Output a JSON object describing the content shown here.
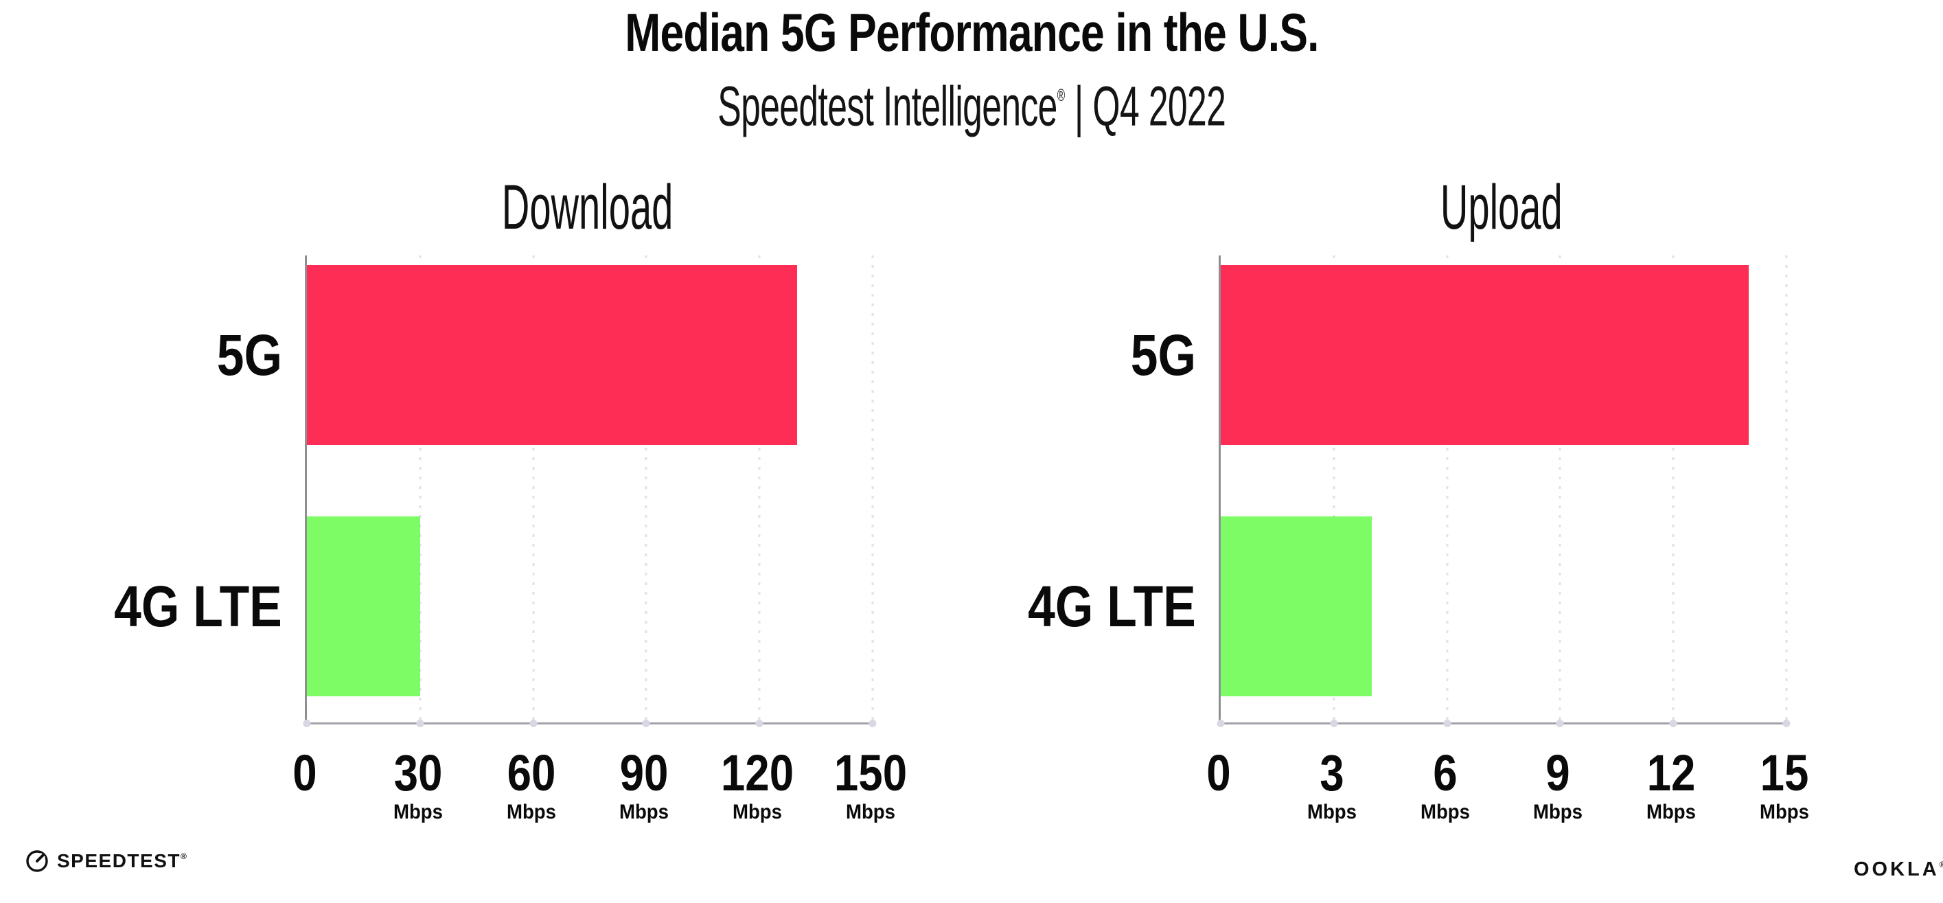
{
  "page": {
    "background": "#ffffff"
  },
  "header": {
    "title": "Median 5G Performance in the U.S.",
    "subtitle_brand": "Speedtest Intelligence",
    "subtitle_registered": "®",
    "subtitle_rest": " | Q4 2022"
  },
  "chart_data": [
    {
      "type": "bar",
      "orientation": "horizontal",
      "title": "Download",
      "categories": [
        "5G",
        "4G LTE"
      ],
      "values": [
        130,
        30
      ],
      "unit": "Mbps",
      "xlim": [
        0,
        150
      ],
      "xticks": [
        0,
        30,
        60,
        90,
        120,
        150
      ],
      "bar_colors": [
        "#fd2d55",
        "#7efc66"
      ],
      "grid": "dotted-vertical",
      "legend": "none"
    },
    {
      "type": "bar",
      "orientation": "horizontal",
      "title": "Upload",
      "categories": [
        "5G",
        "4G LTE"
      ],
      "values": [
        14,
        4
      ],
      "unit": "Mbps",
      "xlim": [
        0,
        15
      ],
      "xticks": [
        0,
        3,
        6,
        9,
        12,
        15
      ],
      "bar_colors": [
        "#fd2d55",
        "#7efc66"
      ],
      "grid": "dotted-vertical",
      "legend": "none"
    }
  ],
  "footer": {
    "speedtest_label": "SPEEDTEST",
    "speedtest_registered": "®",
    "speedtest_icon": "speedtest-gauge-icon",
    "ookla_label": "OOKLA",
    "ookla_registered": "®"
  },
  "colors": {
    "bar_5g": "#fd2d55",
    "bar_4g_lte": "#7efc66",
    "axis_line": "#9a9aa0",
    "gridline_dots": "#dfe0ec",
    "text": "#0a0a0a"
  }
}
